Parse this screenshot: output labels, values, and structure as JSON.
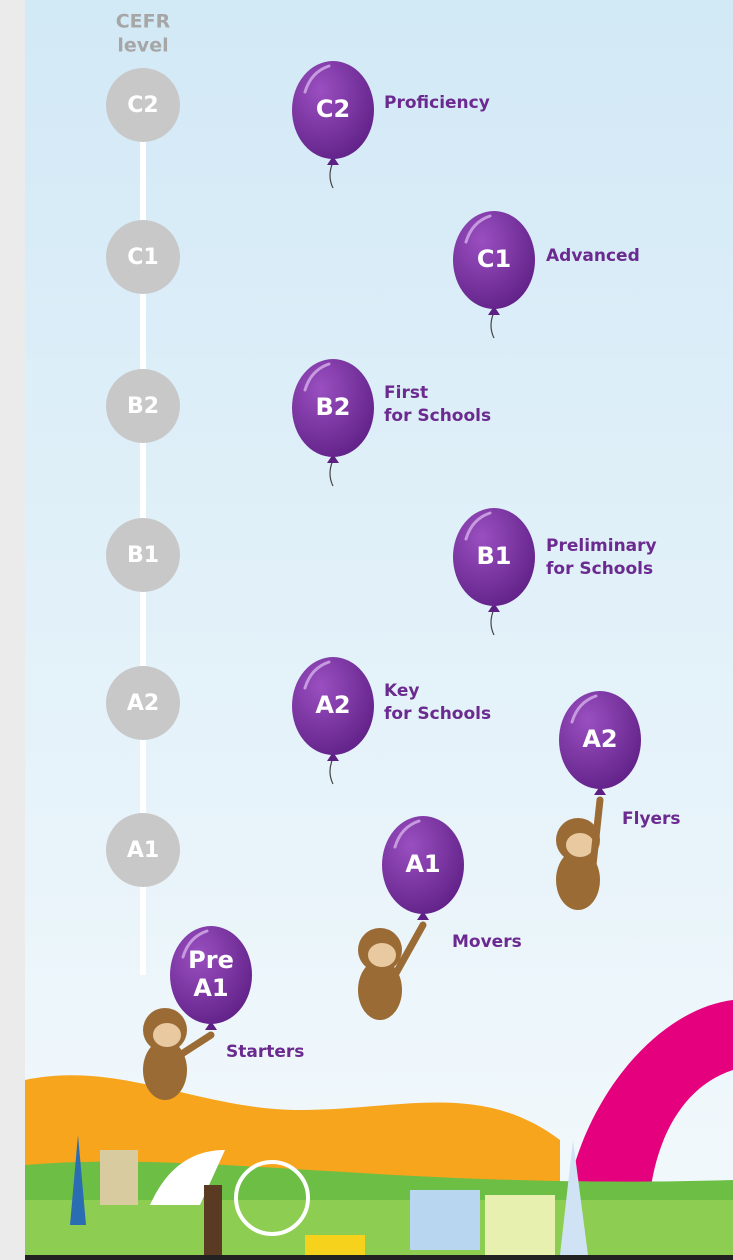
{
  "header": {
    "lines": [
      "CEFR",
      "level"
    ]
  },
  "levels": [
    "C2",
    "C1",
    "B2",
    "B1",
    "A2",
    "A1"
  ],
  "balloons": [
    {
      "label": [
        "C2"
      ],
      "exam": [
        "Proficiency"
      ]
    },
    {
      "label": [
        "C1"
      ],
      "exam": [
        "Advanced"
      ]
    },
    {
      "label": [
        "B2"
      ],
      "exam": [
        "First",
        "for Schools"
      ]
    },
    {
      "label": [
        "B1"
      ],
      "exam": [
        "Preliminary",
        "for Schools"
      ]
    },
    {
      "label": [
        "A2"
      ],
      "exam": [
        "Key",
        "for Schools"
      ]
    },
    {
      "label": [
        "A2"
      ],
      "exam": [
        "Flyers"
      ]
    },
    {
      "label": [
        "A1"
      ],
      "exam": [
        "Movers"
      ]
    },
    {
      "label": [
        "Pre",
        "A1"
      ],
      "exam": [
        "Starters"
      ]
    }
  ]
}
